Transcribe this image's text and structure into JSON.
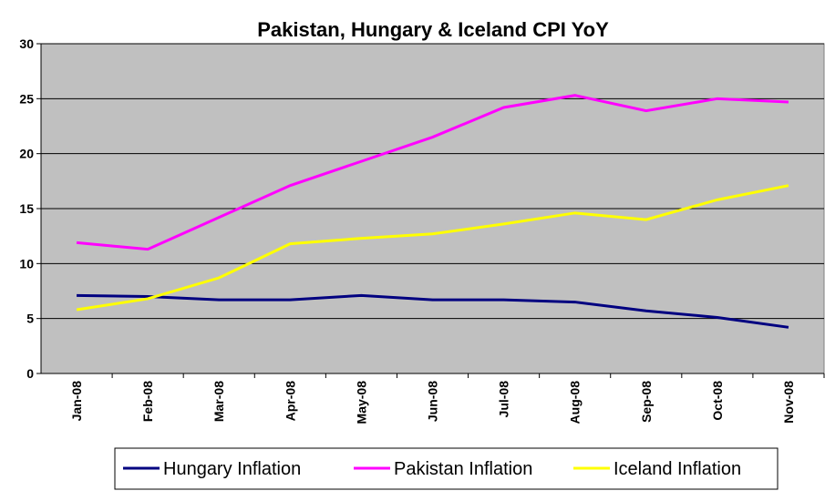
{
  "chart_data": {
    "type": "line",
    "title": "Pakistan, Hungary & Iceland CPI YoY",
    "categories": [
      "Jan-08",
      "Feb-08",
      "Mar-08",
      "Apr-08",
      "May-08",
      "Jun-08",
      "Jul-08",
      "Aug-08",
      "Sep-08",
      "Oct-08",
      "Nov-08"
    ],
    "series": [
      {
        "name": "Hungary Inflation",
        "color": "#000080",
        "values": [
          7.1,
          7.0,
          6.7,
          6.7,
          7.1,
          6.7,
          6.7,
          6.5,
          5.7,
          5.1,
          4.2
        ]
      },
      {
        "name": "Pakistan Inflation",
        "color": "#ff00ff",
        "values": [
          11.9,
          11.3,
          14.2,
          17.1,
          19.3,
          21.5,
          24.2,
          25.3,
          23.9,
          25.0,
          24.7
        ]
      },
      {
        "name": "Iceland Inflation",
        "color": "#ffff00",
        "values": [
          5.8,
          6.8,
          8.7,
          11.8,
          12.3,
          12.7,
          13.6,
          14.6,
          14.0,
          15.8,
          17.1
        ]
      }
    ],
    "ylim": [
      0,
      30
    ],
    "yticks": [
      0,
      5,
      10,
      15,
      20,
      25,
      30
    ],
    "grid": true,
    "legend": "bottom"
  }
}
